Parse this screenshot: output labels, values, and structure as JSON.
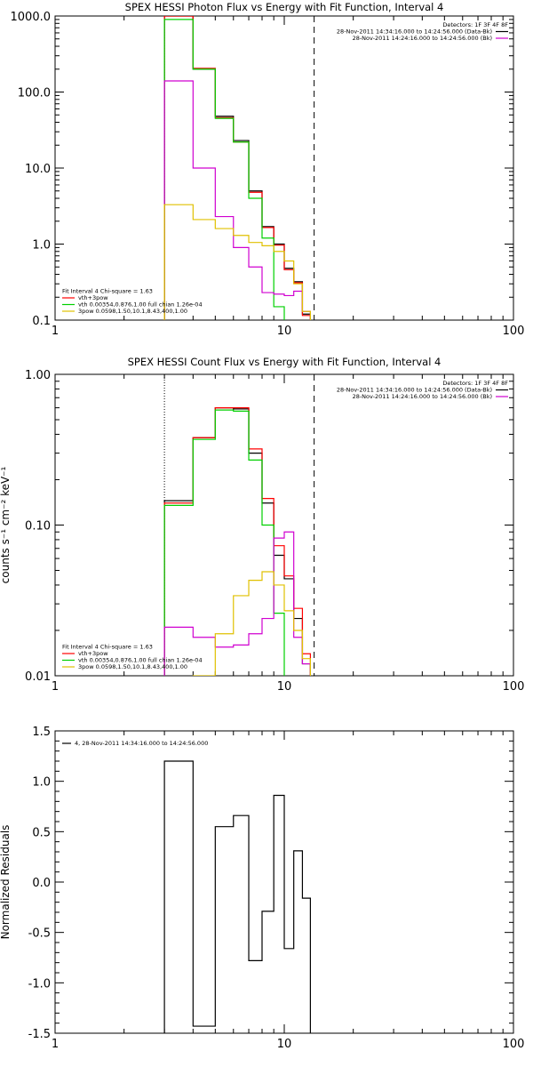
{
  "colors": {
    "black": "#000000",
    "red": "#ff0000",
    "green": "#00d000",
    "magenta": "#d000d0",
    "yellow": "#e0c000"
  },
  "chart_data": [
    {
      "id": "photon",
      "type": "line",
      "title": "SPEX HESSI Photon Flux vs Energy with Fit Function, Interval 4",
      "xlabel": "",
      "ylabel": "",
      "xscale": "log",
      "yscale": "log",
      "xlim": [
        1,
        100
      ],
      "ylim": [
        0.1,
        1000
      ],
      "xticks": [
        {
          "v": 1,
          "label": "1"
        },
        {
          "v": 10,
          "label": "10"
        },
        {
          "v": 100,
          "label": "100"
        }
      ],
      "yticks": [
        {
          "v": 0.1,
          "label": "0.1"
        },
        {
          "v": 1,
          "label": "1.0"
        },
        {
          "v": 10,
          "label": "10.0"
        },
        {
          "v": 100,
          "label": "100.0"
        },
        {
          "v": 1000,
          "label": "1000.0"
        }
      ],
      "vlines": [
        {
          "x": 3.0,
          "style": "dotted"
        },
        {
          "x": 13.5,
          "style": "dashed"
        }
      ],
      "legend_top_right": [
        {
          "text": "Detectors: 1F 3F 4F 8F",
          "color": "",
          "swatch": false
        },
        {
          "text": "28-Nov-2011 14:34:16.000 to 14:24:56.000 (Data-Bk)",
          "color": "black",
          "swatch": true
        },
        {
          "text": "28-Nov-2011 14:24:16.000 to 14:24:56.000 (Bk)",
          "color": "magenta",
          "swatch": true
        }
      ],
      "legend_bottom_left": [
        {
          "text": "Fit Interval  4    Chi-square = 1.63",
          "color": "",
          "swatch": false
        },
        {
          "text": "vth+3pow",
          "color": "red",
          "swatch": true
        },
        {
          "text": "vth 0.00354,0.876,1.00   full chian 1.26e-04",
          "color": "green",
          "swatch": true
        },
        {
          "text": "3pow 0.0598,1.50,10.1,8.43,400,1.00",
          "color": "yellow",
          "swatch": true
        }
      ],
      "series": [
        {
          "color": "black",
          "edges": [
            3,
            4,
            5,
            6,
            7,
            8,
            9,
            10,
            11,
            12,
            13
          ],
          "values": [
            1000,
            200,
            48,
            23,
            5,
            1.7,
            1.0,
            0.48,
            0.32,
            0.12
          ]
        },
        {
          "color": "red",
          "edges": [
            3,
            4,
            5,
            6,
            7,
            8,
            9,
            10,
            11,
            12,
            13
          ],
          "values": [
            1000,
            205,
            46,
            22,
            4.8,
            1.65,
            0.97,
            0.46,
            0.31,
            0.115
          ]
        },
        {
          "color": "green",
          "edges": [
            3,
            4,
            5,
            6,
            7,
            8,
            9,
            10
          ],
          "values": [
            900,
            200,
            45,
            22,
            4.0,
            1.2,
            0.15
          ]
        },
        {
          "color": "magenta",
          "edges": [
            3,
            4,
            5,
            6,
            7,
            8,
            9,
            10,
            11,
            12,
            13
          ],
          "values": [
            140,
            10,
            2.3,
            0.9,
            0.5,
            0.23,
            0.22,
            0.21,
            0.24,
            0.13
          ]
        },
        {
          "color": "yellow",
          "edges": [
            3,
            4,
            5,
            6,
            7,
            8,
            9,
            10,
            11,
            12,
            13
          ],
          "values": [
            3.3,
            2.1,
            1.6,
            1.3,
            1.05,
            0.95,
            0.8,
            0.6,
            0.3,
            0.13
          ]
        }
      ]
    },
    {
      "id": "count",
      "type": "line",
      "title": "SPEX HESSI Count Flux vs Energy with Fit Function, Interval 4",
      "xlabel": "",
      "ylabel": "counts s⁻¹ cm⁻² keV⁻¹",
      "xscale": "log",
      "yscale": "log",
      "xlim": [
        1,
        100
      ],
      "ylim": [
        0.01,
        1
      ],
      "xticks": [
        {
          "v": 1,
          "label": "1"
        },
        {
          "v": 10,
          "label": "10"
        },
        {
          "v": 100,
          "label": "100"
        }
      ],
      "yticks": [
        {
          "v": 0.01,
          "label": "0.01"
        },
        {
          "v": 0.1,
          "label": "0.10"
        },
        {
          "v": 1,
          "label": "1.00"
        }
      ],
      "vlines": [
        {
          "x": 3.0,
          "style": "dotted"
        },
        {
          "x": 13.5,
          "style": "dashed"
        }
      ],
      "legend_top_right": [
        {
          "text": "Detectors: 1F 3F 4F 8F",
          "color": "",
          "swatch": false
        },
        {
          "text": "28-Nov-2011 14:34:16.000 to 14:24:56.000 (Data-Bk)",
          "color": "black",
          "swatch": true
        },
        {
          "text": "28-Nov-2011 14:24:16.000 to 14:24:56.000 (Bk)",
          "color": "magenta",
          "swatch": true
        }
      ],
      "legend_bottom_left": [
        {
          "text": "Fit Interval  4    Chi-square = 1.63",
          "color": "",
          "swatch": false
        },
        {
          "text": "vth+3pow",
          "color": "red",
          "swatch": true
        },
        {
          "text": "vth 0.00354,0.876,1.00   full chian 1.26e-04",
          "color": "green",
          "swatch": true
        },
        {
          "text": "3pow 0.0598,1.50,10.1,8.43,400,1.00",
          "color": "yellow",
          "swatch": true
        }
      ],
      "series": [
        {
          "color": "black",
          "edges": [
            3,
            4,
            5,
            6,
            7,
            8,
            9,
            10,
            11,
            12,
            13
          ],
          "values": [
            0.145,
            0.38,
            0.6,
            0.59,
            0.3,
            0.14,
            0.063,
            0.044,
            0.024,
            0.012
          ]
        },
        {
          "color": "red",
          "edges": [
            3,
            4,
            5,
            6,
            7,
            8,
            9,
            10,
            11,
            12,
            13
          ],
          "values": [
            0.14,
            0.38,
            0.6,
            0.6,
            0.32,
            0.15,
            0.073,
            0.046,
            0.028,
            0.014
          ]
        },
        {
          "color": "green",
          "edges": [
            3,
            4,
            5,
            6,
            7,
            8,
            9,
            10
          ],
          "values": [
            0.135,
            0.37,
            0.58,
            0.57,
            0.27,
            0.1,
            0.026
          ]
        },
        {
          "color": "magenta",
          "edges": [
            3,
            4,
            5,
            6,
            7,
            8,
            9,
            10,
            11,
            12,
            13
          ],
          "values": [
            0.021,
            0.018,
            0.0155,
            0.016,
            0.019,
            0.024,
            0.082,
            0.09,
            0.018,
            0.012
          ]
        },
        {
          "color": "yellow",
          "edges": [
            3,
            4,
            5,
            6,
            7,
            8,
            9,
            10,
            11,
            12,
            13
          ],
          "values": [
            0.0098,
            0.01,
            0.019,
            0.034,
            0.043,
            0.049,
            0.04,
            0.027,
            0.02,
            0.013
          ]
        }
      ]
    },
    {
      "id": "resid",
      "type": "line",
      "title": "",
      "xlabel": "",
      "ylabel": "Normalized Residuals",
      "xscale": "log",
      "yscale": "linear",
      "xlim": [
        1,
        100
      ],
      "ylim": [
        -1.5,
        1.5
      ],
      "xticks": [
        {
          "v": 1,
          "label": "1"
        },
        {
          "v": 10,
          "label": "10"
        },
        {
          "v": 100,
          "label": "100"
        }
      ],
      "yticks": [
        {
          "v": -1.5,
          "label": "-1.5"
        },
        {
          "v": -1.0,
          "label": "-1.0"
        },
        {
          "v": -0.5,
          "label": "-0.5"
        },
        {
          "v": 0,
          "label": "0.0"
        },
        {
          "v": 0.5,
          "label": "0.5"
        },
        {
          "v": 1.0,
          "label": "1.0"
        },
        {
          "v": 1.5,
          "label": "1.5"
        }
      ],
      "vlines": [],
      "legend_top_right": [],
      "legend_bottom_left": [],
      "legend_top_left": [
        {
          "text": "4, 28-Nov-2011 14:34:16.000 to 14:24:56.000",
          "color": "black",
          "swatch": true
        }
      ],
      "series": [
        {
          "color": "black",
          "edges": [
            3,
            4,
            5,
            6,
            7,
            8,
            9,
            10,
            11,
            12,
            13
          ],
          "values": [
            1.2,
            -1.43,
            0.55,
            0.66,
            -0.78,
            -0.29,
            0.86,
            -0.66,
            0.31,
            -0.16
          ],
          "extend_to": -1.5
        }
      ]
    }
  ]
}
